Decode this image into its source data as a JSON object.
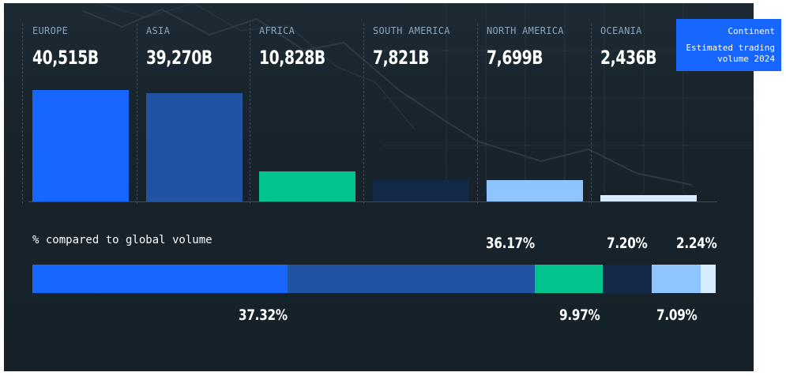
{
  "legend": {
    "title": "Continent",
    "subtitle": "Estimated trading volume 2024"
  },
  "colors": {
    "europe": "#1766ff",
    "asia": "#2253a3",
    "africa": "#00c38d",
    "south_america": "#122a48",
    "north_america": "#8ec5ff",
    "oceania": "#d8ecff",
    "background": "#1b262e"
  },
  "chart_data": [
    {
      "type": "bar",
      "categories": [
        "EUROPE",
        "ASIA",
        "AFRICA",
        "SOUTH AMERICA",
        "NORTH AMERICA",
        "OCEANIA"
      ],
      "values": [
        40515,
        39270,
        10828,
        7821,
        7699,
        2436
      ],
      "value_labels": [
        "40,515B",
        "39,270B",
        "10,828B",
        "7,821B",
        "7,699B",
        "2,436B"
      ],
      "unit": "B",
      "ylim": [
        0,
        40515
      ],
      "grid": false
    },
    {
      "type": "bar",
      "orientation": "horizontal-stacked",
      "title": "% compared to global volume",
      "categories": [
        "EUROPE",
        "ASIA",
        "AFRICA",
        "SOUTH AMERICA",
        "NORTH AMERICA",
        "OCEANIA"
      ],
      "values": [
        37.32,
        36.17,
        9.97,
        7.2,
        7.09,
        2.24
      ],
      "value_labels": [
        "37.32%",
        "36.17%",
        "9.97%",
        "7.20%",
        "7.09%",
        "2.24%"
      ]
    }
  ]
}
